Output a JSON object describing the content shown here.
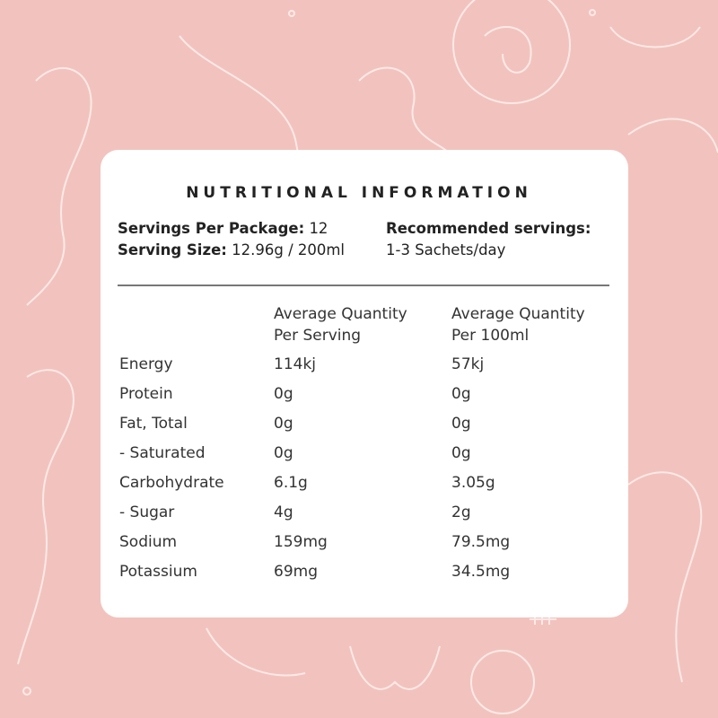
{
  "colors": {
    "background": "#f2c3be",
    "card": "#ffffff",
    "text": "#222222",
    "line_art": "#fbe9e6"
  },
  "title": "NUTRITIONAL INFORMATION",
  "servings_per_package": {
    "label": "Servings Per Package:",
    "value": "12"
  },
  "serving_size": {
    "label": "Serving Size:",
    "value": "12.96g / 200ml"
  },
  "recommended": {
    "label": "Recommended servings:",
    "value": "1-3 Sachets/day"
  },
  "columns": [
    {
      "line1": "Average Quantity",
      "line2": "Per Serving"
    },
    {
      "line1": "Average Quantity",
      "line2": "Per 100ml"
    }
  ],
  "rows": [
    {
      "name": "Energy",
      "per_serving": "114kj",
      "per_100ml": "57kj"
    },
    {
      "name": "Protein",
      "per_serving": "0g",
      "per_100ml": "0g"
    },
    {
      "name": "Fat, Total",
      "per_serving": "0g",
      "per_100ml": "0g"
    },
    {
      "name": "- Saturated",
      "per_serving": "0g",
      "per_100ml": "0g"
    },
    {
      "name": "Carbohydrate",
      "per_serving": "6.1g",
      "per_100ml": "3.05g"
    },
    {
      "name": "- Sugar",
      "per_serving": "4g",
      "per_100ml": "2g"
    },
    {
      "name": "Sodium",
      "per_serving": "159mg",
      "per_100ml": "79.5mg"
    },
    {
      "name": "Potassium",
      "per_serving": "69mg",
      "per_100ml": "34.5mg"
    }
  ]
}
